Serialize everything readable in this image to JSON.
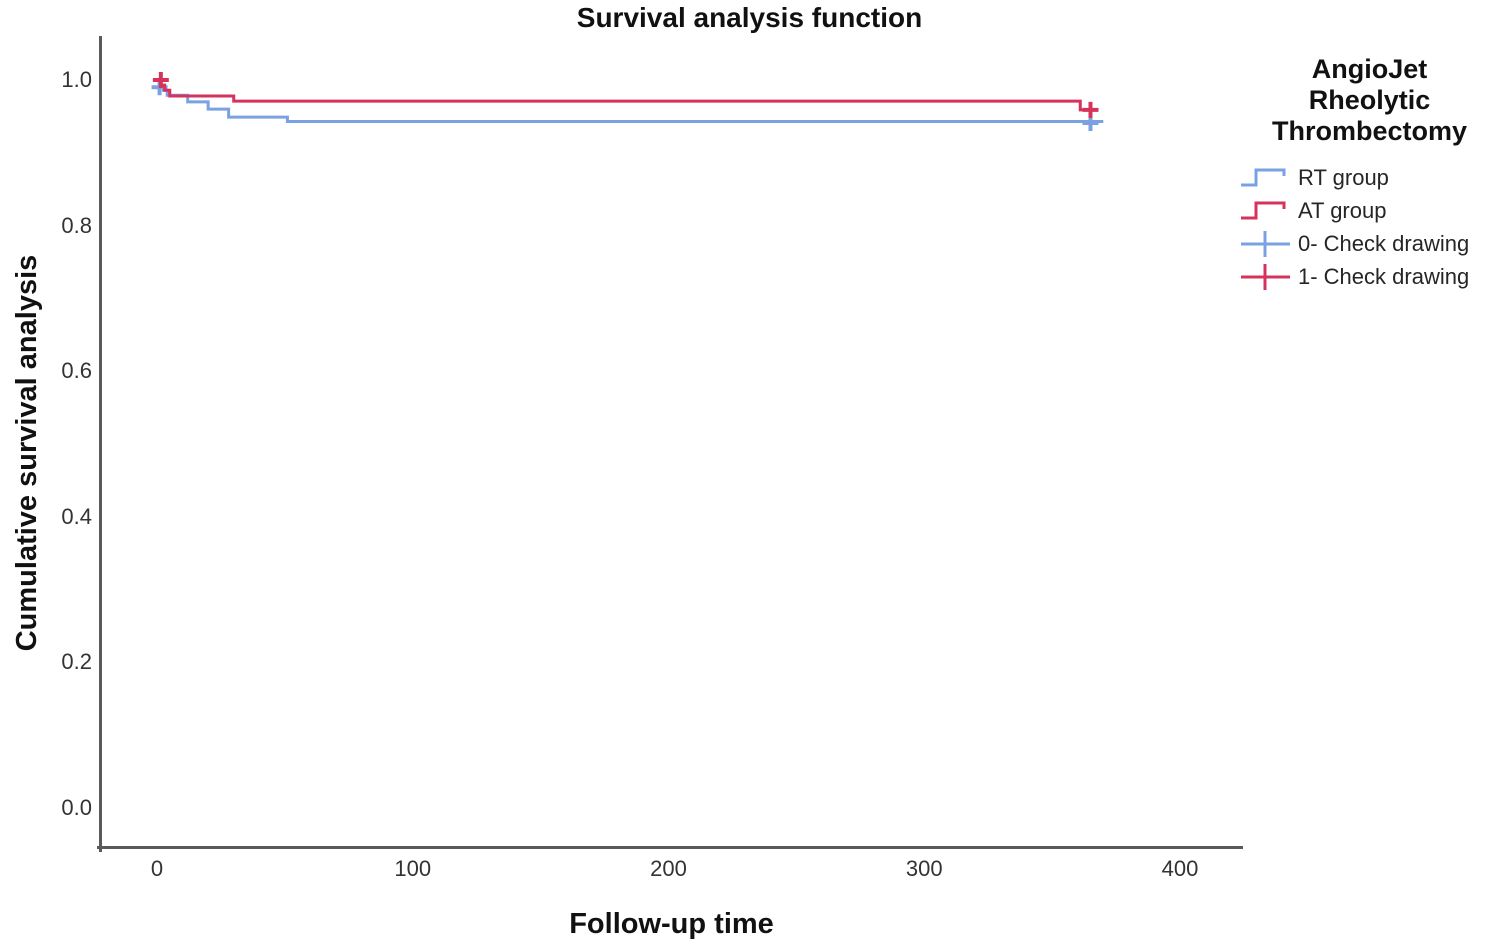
{
  "title": "Survival analysis function",
  "legend": {
    "title_lines": [
      "AngioJet",
      "Rheolytic",
      "Thrombectomy"
    ],
    "items": [
      {
        "label": "RT group",
        "symbol": "step",
        "color": "#7AA2E2"
      },
      {
        "label": "AT group",
        "symbol": "step",
        "color": "#D5335C"
      },
      {
        "label": "0- Check drawing",
        "symbol": "censor",
        "color": "#7AA2E2"
      },
      {
        "label": "1- Check drawing",
        "symbol": "censor",
        "color": "#D5335C"
      }
    ]
  },
  "chart_data": {
    "type": "line",
    "subtype": "kaplan_meier_step",
    "title": "Survival analysis function",
    "xlabel": "Follow-up time",
    "ylabel": "Cumulative survival analysis",
    "xlim": [
      -23,
      425
    ],
    "ylim": [
      0.0,
      1.05
    ],
    "grid": false,
    "legend_position": "right-top",
    "axis_color": "#5a5a5a",
    "x_ticks": [
      {
        "v": 0,
        "label": "0"
      },
      {
        "v": 100,
        "label": "100"
      },
      {
        "v": 200,
        "label": "200"
      },
      {
        "v": 300,
        "label": "300"
      },
      {
        "v": 400,
        "label": "400"
      }
    ],
    "y_ticks": [
      {
        "v": 1.0,
        "label": "1.0"
      },
      {
        "v": 0.8,
        "label": "0.8"
      },
      {
        "v": 0.6,
        "label": "0.6"
      },
      {
        "v": 0.4,
        "label": "0.4"
      },
      {
        "v": 0.2,
        "label": "0.2"
      },
      {
        "v": 0.0,
        "label": "0.0"
      }
    ],
    "series": [
      {
        "name": "RT group",
        "color": "#7AA2E2",
        "steps": [
          [
            0,
            1.0
          ],
          [
            1,
            0.993
          ],
          [
            2.5,
            0.986
          ],
          [
            4,
            0.979
          ],
          [
            12,
            0.97
          ],
          [
            20,
            0.96
          ],
          [
            28,
            0.949
          ],
          [
            51,
            0.943
          ]
        ],
        "end_time": 370,
        "censored": [
          [
            1,
            0.99
          ],
          [
            365,
            0.941
          ]
        ]
      },
      {
        "name": "AT group",
        "color": "#D5335C",
        "steps": [
          [
            0,
            1.0
          ],
          [
            1.5,
            0.993
          ],
          [
            3,
            0.986
          ],
          [
            5,
            0.978
          ],
          [
            30,
            0.971
          ],
          [
            361,
            0.959
          ]
        ],
        "end_time": 366,
        "censored": [
          [
            1.5,
            1.0
          ],
          [
            365,
            0.959
          ]
        ]
      }
    ]
  }
}
